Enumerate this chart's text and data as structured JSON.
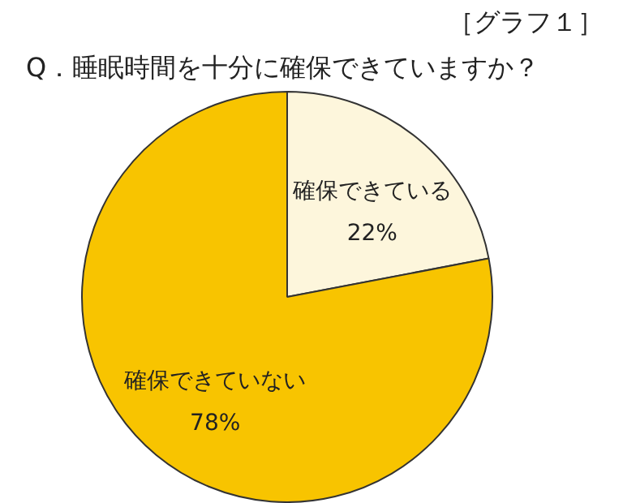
{
  "chart_data": {
    "type": "pie",
    "title": "［グラフ１］",
    "subtitle": "Q．睡眠時間を十分に確保できていますか？",
    "categories": [
      "確保できている",
      "確保できていない"
    ],
    "values": [
      22,
      78
    ],
    "colors": [
      "#fdf6dc",
      "#f8c400"
    ],
    "value_labels": [
      "22%",
      "78%"
    ],
    "legend": false
  }
}
